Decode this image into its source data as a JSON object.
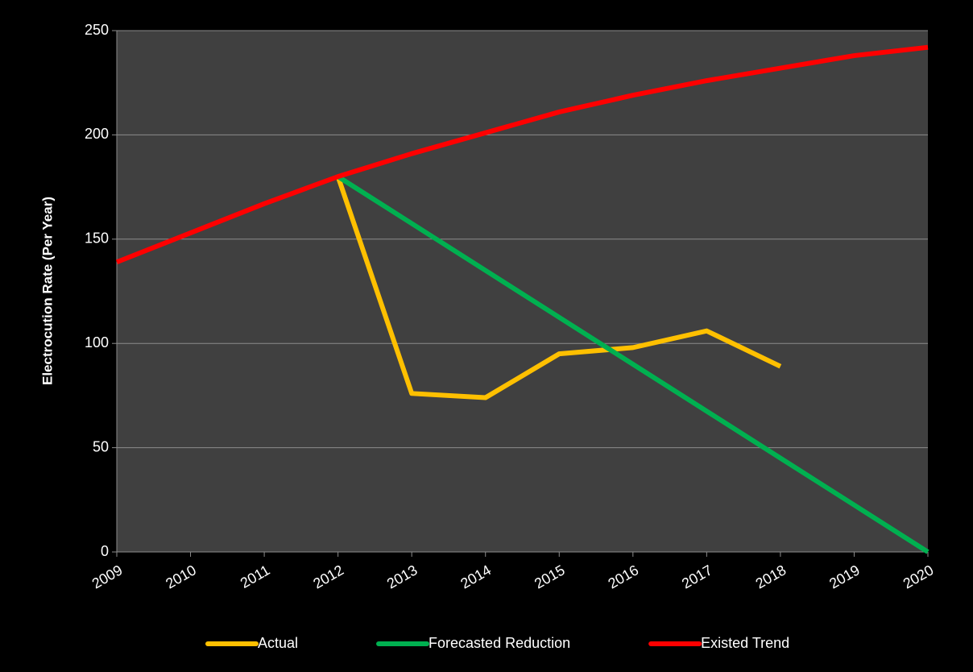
{
  "chart_data": {
    "type": "line",
    "ylabel": "Electrocution Rate (Per Year)",
    "x": [
      2009,
      2010,
      2011,
      2012,
      2013,
      2014,
      2015,
      2016,
      2017,
      2018,
      2019,
      2020
    ],
    "xlim": [
      2009,
      2020
    ],
    "xticks": [
      2009,
      2010,
      2011,
      2012,
      2013,
      2014,
      2015,
      2016,
      2017,
      2018,
      2019,
      2020
    ],
    "ylim": [
      0,
      250
    ],
    "yticks": [
      0,
      50,
      100,
      150,
      200,
      250
    ],
    "grid": true,
    "legend": "bottom",
    "series": [
      {
        "name": "Actual",
        "color": "#ffc000",
        "values": [
          null,
          null,
          null,
          180,
          76,
          74,
          95,
          98,
          106,
          89,
          null,
          null
        ]
      },
      {
        "name": "Forecasted Reduction",
        "color": "#00b050",
        "values": [
          null,
          null,
          null,
          180,
          157.5,
          135,
          112.5,
          90,
          67.5,
          45,
          22.5,
          0
        ]
      },
      {
        "name": "Existed Trend",
        "color": "#ff0000",
        "values": [
          139,
          153,
          167,
          180,
          191,
          201,
          211,
          219,
          226,
          232,
          238,
          242
        ]
      }
    ]
  }
}
